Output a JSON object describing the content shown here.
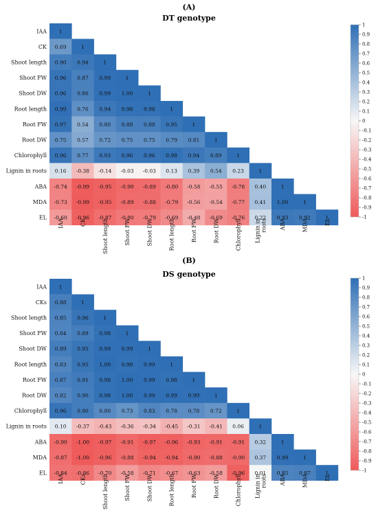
{
  "chart_data": [
    {
      "type": "heatmap",
      "panel_label": "(A)",
      "title": "DT genotype",
      "variables": [
        "IAA",
        "CK",
        "Shoot length",
        "Shoot FW",
        "Shoot DW",
        "Root length",
        "Root FW",
        "Root DW",
        "Chlorophyll",
        "Lignin in roots",
        "ABA",
        "MDA",
        "EL"
      ],
      "matrix": [
        [
          "1"
        ],
        [
          "0.69",
          "1"
        ],
        [
          "0.90",
          "0.94",
          "1"
        ],
        [
          "0.96",
          "0.87",
          "0.99",
          "1"
        ],
        [
          "0.96",
          "0.86",
          "0.99",
          "1.00",
          "1"
        ],
        [
          "0.99",
          "0.76",
          "0.94",
          "0.98",
          "0.98",
          "1"
        ],
        [
          "0.97",
          "0.54",
          "0.80",
          "0.88",
          "0.88",
          "0.95",
          "1"
        ],
        [
          "0.75",
          "0.57",
          "0.72",
          "0.75",
          "0.75",
          "0.79",
          "0.81",
          "1"
        ],
        [
          "0.96",
          "0.77",
          "0.93",
          "0.96",
          "0.96",
          "0.98",
          "0.94",
          "0.89",
          "1"
        ],
        [
          "0.16",
          "-0.38",
          "-0.14",
          "-0.03",
          "-0.03",
          "0.13",
          "0.39",
          "0.54",
          "0.23",
          "1"
        ],
        [
          "-0.74",
          "-0.99",
          "-0.95",
          "-0.90",
          "-0.89",
          "-0.80",
          "-0.58",
          "-0.55",
          "-0.78",
          "0.40",
          "1"
        ],
        [
          "-0.73",
          "-0.99",
          "-0.95",
          "-0.89",
          "-0.88",
          "-0.79",
          "-0.56",
          "-0.54",
          "-0.77",
          "0.41",
          "1.00",
          "1"
        ],
        [
          "-0.60",
          "-0.96",
          "-0.87",
          "-0.80",
          "-0.79",
          "-0.69",
          "-0.48",
          "-0.69",
          "-0.76",
          "0.22",
          "0.93",
          "0.92",
          "1"
        ]
      ],
      "colorbar_ticks": [
        "1",
        "0.9",
        "0.8",
        "0.7",
        "0.6",
        "0.5",
        "0.4",
        "0.3",
        "0.2",
        "0.1",
        "0",
        "-0.1",
        "-0.2",
        "-0.3",
        "-0.4",
        "-0.5",
        "-0.6",
        "-0.7",
        "-0.8",
        "-0.9",
        "-1"
      ],
      "color_range": [
        -1,
        1
      ]
    },
    {
      "type": "heatmap",
      "panel_label": "(B)",
      "title": "DS genotype",
      "variables": [
        "IAA",
        "CKs",
        "Shoot length",
        "Shoot FW",
        "Shoot DW",
        "Root length",
        "Root FW",
        "Root DW",
        "Chlorophyll",
        "Lignin in roots",
        "ABA",
        "MDA",
        "EL"
      ],
      "matrix": [
        [
          "1"
        ],
        [
          "0.88",
          "1"
        ],
        [
          "0.85",
          "0.96",
          "1"
        ],
        [
          "0.84",
          "0.89",
          "0.98",
          "1"
        ],
        [
          "0.89",
          "0.95",
          "0.99",
          "0.99",
          "1"
        ],
        [
          "0.83",
          "0.95",
          "1.00",
          "0.98",
          "0.99",
          "1"
        ],
        [
          "0.87",
          "0.91",
          "0.98",
          "1.00",
          "0.99",
          "0.98",
          "1"
        ],
        [
          "0.82",
          "0.90",
          "0.98",
          "1.00",
          "0.99",
          "0.99",
          "0.99",
          "1"
        ],
        [
          "0.96",
          "0.90",
          "0.80",
          "0.73",
          "0.83",
          "0.78",
          "0.78",
          "0.72",
          "1"
        ],
        [
          "0.10",
          "-0.37",
          "-0.43",
          "-0.36",
          "-0.34",
          "-0.45",
          "-0.31",
          "-0.41",
          "0.06",
          "1"
        ],
        [
          "-0.90",
          "-1.00",
          "-0.97",
          "-0.91",
          "-0.97",
          "-0.96",
          "-0.93",
          "-0.91",
          "-0.91",
          "0.32",
          "1"
        ],
        [
          "-0.87",
          "-1.00",
          "-0.96",
          "-0.88",
          "-0.94",
          "-0.94",
          "-0.90",
          "-0.88",
          "-0.90",
          "0.37",
          "0.99",
          "1"
        ],
        [
          "-0.84",
          "-0.86",
          "-0.70",
          "-0.58",
          "-0.71",
          "-0.67",
          "-0.63",
          "-0.58",
          "-0.96",
          "0.01",
          "0.85",
          "0.87",
          "1"
        ]
      ],
      "colorbar_ticks": [
        "1",
        "0.9",
        "0.8",
        "0.7",
        "0.6",
        "0.5",
        "0.4",
        "0.3",
        "0.2",
        "0.1",
        "0",
        "-0.1",
        "-0.2",
        "-0.3",
        "-0.4",
        "-0.5",
        "-0.6",
        "-0.7",
        "-0.8",
        "-0.9",
        "-1"
      ],
      "color_range": [
        -1,
        1
      ]
    }
  ],
  "colors": {
    "positive": "#2f6fb5",
    "neutral": "#f7f7f7",
    "negative": "#ef5a5a",
    "label_background": "#e6edf6"
  }
}
